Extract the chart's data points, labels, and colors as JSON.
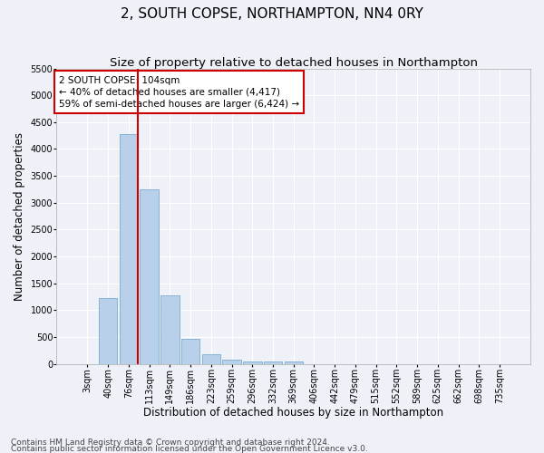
{
  "title": "2, SOUTH COPSE, NORTHAMPTON, NN4 0RY",
  "subtitle": "Size of property relative to detached houses in Northampton",
  "xlabel": "Distribution of detached houses by size in Northampton",
  "ylabel": "Number of detached properties",
  "footnote1": "Contains HM Land Registry data © Crown copyright and database right 2024.",
  "footnote2": "Contains public sector information licensed under the Open Government Licence v3.0.",
  "bar_color": "#b8d0ea",
  "bar_edge_color": "#7aabce",
  "vline_color": "#cc0000",
  "annotation_box_text": "2 SOUTH COPSE: 104sqm\n← 40% of detached houses are smaller (4,417)\n59% of semi-detached houses are larger (6,424) →",
  "annotation_box_color": "#cc0000",
  "categories": [
    "3sqm",
    "40sqm",
    "76sqm",
    "113sqm",
    "149sqm",
    "186sqm",
    "223sqm",
    "259sqm",
    "296sqm",
    "332sqm",
    "369sqm",
    "406sqm",
    "442sqm",
    "479sqm",
    "515sqm",
    "552sqm",
    "589sqm",
    "625sqm",
    "662sqm",
    "698sqm",
    "735sqm"
  ],
  "bar_heights": [
    0,
    1230,
    4280,
    3250,
    1280,
    470,
    180,
    80,
    50,
    38,
    38,
    0,
    0,
    0,
    0,
    0,
    0,
    0,
    0,
    0,
    0
  ],
  "ylim": [
    0,
    5500
  ],
  "yticks": [
    0,
    500,
    1000,
    1500,
    2000,
    2500,
    3000,
    3500,
    4000,
    4500,
    5000,
    5500
  ],
  "background_color": "#eef2f8",
  "grid_color": "#ffffff",
  "title_fontsize": 11,
  "subtitle_fontsize": 9.5,
  "axis_label_fontsize": 8.5,
  "tick_fontsize": 7,
  "footnote_fontsize": 6.5,
  "vline_bar_index": 2.5
}
